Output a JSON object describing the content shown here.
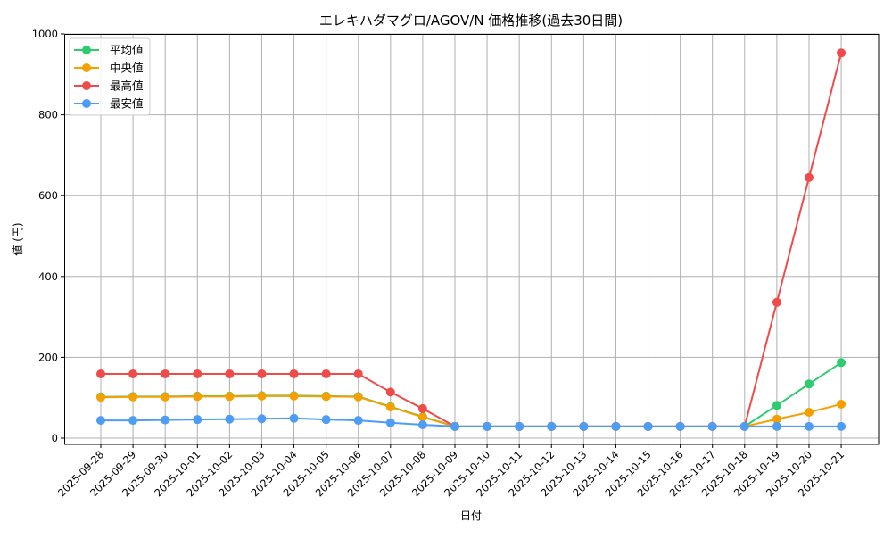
{
  "chart_data": {
    "type": "line",
    "title": "エレキハダマグロ/AGOV/N 価格推移(過去30日間)",
    "xlabel": "日付",
    "ylabel": "値 (円)",
    "ylim": [
      0,
      1000
    ],
    "yticks": [
      0,
      200,
      400,
      600,
      800,
      1000
    ],
    "grid": true,
    "legend_position": "upper left",
    "categories": [
      "2025-09-28",
      "2025-09-29",
      "2025-09-30",
      "2025-10-01",
      "2025-10-02",
      "2025-10-03",
      "2025-10-04",
      "2025-10-05",
      "2025-10-06",
      "2025-10-07",
      "2025-10-08",
      "2025-10-09",
      "2025-10-10",
      "2025-10-11",
      "2025-10-12",
      "2025-10-13",
      "2025-10-14",
      "2025-10-15",
      "2025-10-16",
      "2025-10-17",
      "2025-10-18",
      "2025-10-19",
      "2025-10-20",
      "2025-10-21"
    ],
    "series": [
      {
        "name": "平均値",
        "color": "#2ecc71",
        "values": [
          102,
          103,
          103,
          104,
          104,
          105,
          105,
          104,
          103,
          78,
          53,
          29,
          29,
          29,
          29,
          29,
          29,
          29,
          29,
          29,
          29,
          81,
          134,
          187
        ]
      },
      {
        "name": "中央値",
        "color": "#f5a000",
        "values": [
          101,
          102,
          102,
          103,
          103,
          104,
          104,
          103,
          102,
          77,
          52,
          29,
          29,
          29,
          29,
          29,
          29,
          29,
          29,
          29,
          29,
          47,
          64,
          84
        ]
      },
      {
        "name": "最高値",
        "color": "#ef4b4b",
        "values": [
          159,
          159,
          159,
          159,
          159,
          159,
          159,
          159,
          159,
          114,
          73,
          29,
          29,
          29,
          29,
          29,
          29,
          29,
          29,
          29,
          29,
          336,
          645,
          953
        ]
      },
      {
        "name": "最安値",
        "color": "#4d9cf5",
        "values": [
          44,
          44,
          45,
          46,
          47,
          48,
          49,
          46,
          44,
          38,
          33,
          29,
          29,
          29,
          29,
          29,
          29,
          29,
          29,
          29,
          29,
          29,
          29,
          29
        ]
      }
    ]
  }
}
